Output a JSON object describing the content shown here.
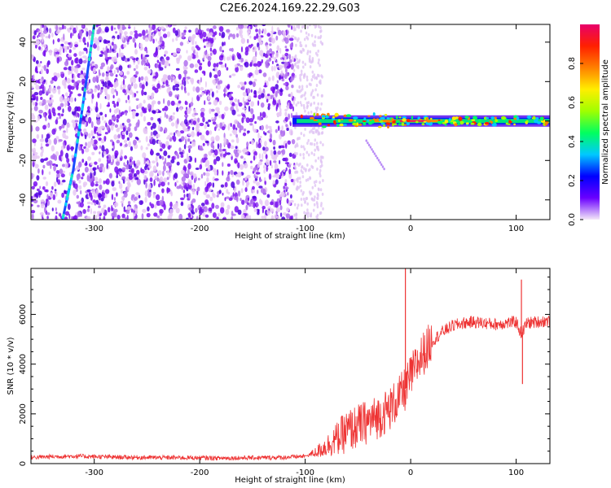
{
  "title": "C2E6.2024.169.22.29.G03",
  "chart_data": [
    {
      "type": "heatmap",
      "xlabel": "Height of straight line (km)",
      "ylabel": "Frequency (Hz)",
      "xlim": [
        -360,
        132
      ],
      "ylim": [
        -50,
        49
      ],
      "xticks": [
        -300,
        -200,
        -100,
        0,
        100
      ],
      "yticks": [
        -40,
        -20,
        0,
        20,
        40
      ],
      "colorbar": {
        "label": "Normalized spectral amplitude",
        "range": [
          0,
          1
        ],
        "ticks": [
          0.0,
          0.2,
          0.4,
          0.6,
          0.8
        ],
        "colormap": [
          "#f4e8f8",
          "#6a00ff",
          "#0000ff",
          "#00c8ff",
          "#00ff60",
          "#a0ff00",
          "#ffee00",
          "#ff8000",
          "#ff2000",
          "#e8006a"
        ]
      },
      "features": {
        "noise_region_km": [
          -360,
          -110
        ],
        "faint_noise_km": [
          -110,
          -83
        ],
        "carrier_start_km": -112,
        "carrier_frequency_hz": 0,
        "chirp_track": {
          "x_km": [
            -330,
            -320,
            -313,
            -305,
            -300
          ],
          "y_hz": [
            -50,
            -25,
            0,
            30,
            49
          ]
        }
      }
    },
    {
      "type": "line",
      "xlabel": "Height of straight line (km)",
      "ylabel": "SNR (10 * v/v)",
      "xlim": [
        -360,
        132
      ],
      "ylim": [
        0,
        7850
      ],
      "xticks": [
        -300,
        -200,
        -100,
        0,
        100
      ],
      "yticks": [
        0,
        2000,
        4000,
        6000
      ],
      "color": "#ee3333",
      "series": [
        {
          "x": [
            -360,
            -340,
            -320,
            -300,
            -280,
            -260,
            -240,
            -220,
            -200,
            -180,
            -160,
            -140,
            -120,
            -100,
            -90,
            -80,
            -70,
            -60,
            -50,
            -40,
            -30,
            -20,
            -10,
            -5,
            0,
            10,
            20,
            30,
            40,
            50,
            60,
            70,
            80,
            90,
            100,
            105,
            110,
            120,
            132
          ],
          "y": [
            250,
            280,
            300,
            280,
            260,
            250,
            240,
            240,
            230,
            220,
            230,
            240,
            250,
            300,
            450,
            700,
            1000,
            1300,
            1500,
            1700,
            1900,
            2200,
            2700,
            3000,
            3500,
            4300,
            4900,
            5300,
            5550,
            5650,
            5700,
            5650,
            5600,
            5650,
            5700,
            5200,
            5650,
            5700,
            5750
          ]
        }
      ],
      "spikes": [
        {
          "x": -5,
          "y": 7850
        },
        {
          "x": 105,
          "y": 7400
        },
        {
          "x": 106,
          "y": 3200
        }
      ]
    }
  ]
}
